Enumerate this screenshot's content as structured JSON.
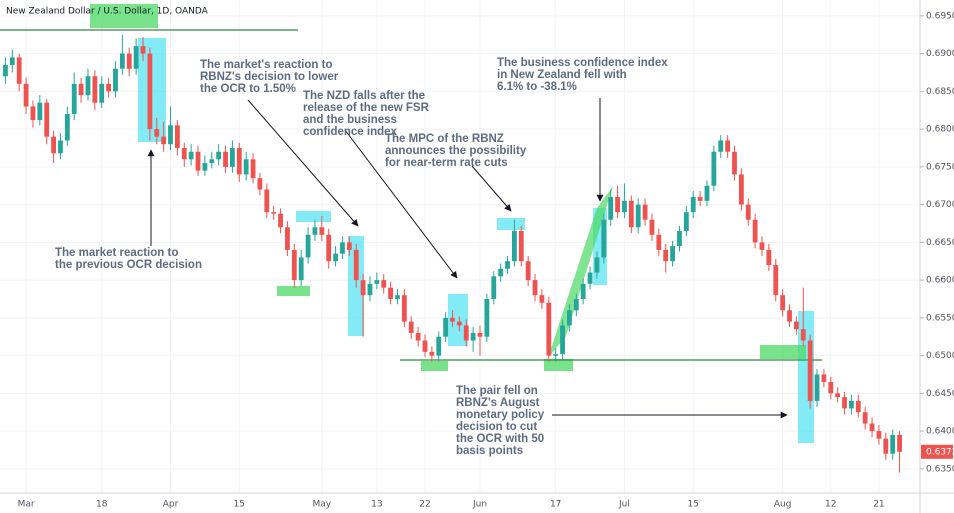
{
  "chart_data": {
    "type": "candlestick",
    "title": "New Zealand Dollar / U.S. Dollar, 1D, OANDA",
    "up_color": "#26a69a",
    "down_color": "#ef5350",
    "grid": true,
    "ylim": [
      0.6318,
      0.6971
    ],
    "yticks": [
      {
        "value": 0.635,
        "label": "0.63500"
      },
      {
        "value": 0.64,
        "label": "0.64000"
      },
      {
        "value": 0.645,
        "label": "0.64500"
      },
      {
        "value": 0.65,
        "label": "0.65000"
      },
      {
        "value": 0.655,
        "label": "0.65500"
      },
      {
        "value": 0.66,
        "label": "0.66000"
      },
      {
        "value": 0.665,
        "label": "0.66500"
      },
      {
        "value": 0.67,
        "label": "0.67000"
      },
      {
        "value": 0.675,
        "label": "0.67500"
      },
      {
        "value": 0.68,
        "label": "0.68000"
      },
      {
        "value": 0.685,
        "label": "0.68500"
      },
      {
        "value": 0.69,
        "label": "0.69000"
      },
      {
        "value": 0.695,
        "label": "0.69500"
      }
    ],
    "categories": [
      null,
      null,
      null,
      "Mar",
      null,
      null,
      null,
      null,
      null,
      null,
      null,
      null,
      null,
      null,
      "18",
      null,
      null,
      null,
      null,
      null,
      null,
      null,
      null,
      null,
      "Apr",
      null,
      null,
      null,
      null,
      null,
      null,
      null,
      null,
      null,
      "15",
      null,
      null,
      null,
      null,
      null,
      null,
      null,
      null,
      null,
      null,
      null,
      "May",
      null,
      null,
      null,
      null,
      null,
      null,
      null,
      "13",
      null,
      null,
      null,
      null,
      null,
      null,
      "22",
      null,
      null,
      null,
      null,
      null,
      null,
      null,
      "Jun",
      null,
      null,
      null,
      null,
      null,
      null,
      null,
      null,
      null,
      null,
      "17",
      null,
      null,
      null,
      null,
      null,
      null,
      null,
      null,
      null,
      "Jul",
      null,
      null,
      null,
      null,
      null,
      null,
      null,
      null,
      null,
      "15",
      null,
      null,
      null,
      null,
      null,
      null,
      null,
      null,
      null,
      null,
      null,
      null,
      "Aug",
      null,
      null,
      null,
      null,
      null,
      null,
      "12",
      null,
      null,
      null,
      null,
      null,
      null,
      "21",
      null,
      null,
      null
    ],
    "ohlc": [
      [
        0.687,
        0.6895,
        0.686,
        0.6885
      ],
      [
        0.6885,
        0.6905,
        0.6875,
        0.6895
      ],
      [
        0.6895,
        0.69,
        0.685,
        0.686
      ],
      [
        0.686,
        0.6868,
        0.682,
        0.683
      ],
      [
        0.683,
        0.6838,
        0.6802,
        0.6812
      ],
      [
        0.6812,
        0.6845,
        0.6805,
        0.6835
      ],
      [
        0.6835,
        0.684,
        0.678,
        0.679
      ],
      [
        0.679,
        0.6798,
        0.6755,
        0.6768
      ],
      [
        0.6768,
        0.6795,
        0.676,
        0.6785
      ],
      [
        0.6785,
        0.683,
        0.6778,
        0.682
      ],
      [
        0.682,
        0.6875,
        0.6812,
        0.686
      ],
      [
        0.686,
        0.6868,
        0.6835,
        0.6845
      ],
      [
        0.6845,
        0.688,
        0.6838,
        0.687
      ],
      [
        0.687,
        0.6878,
        0.6825,
        0.6835
      ],
      [
        0.6835,
        0.687,
        0.6828,
        0.686
      ],
      [
        0.686,
        0.6868,
        0.6842,
        0.685
      ],
      [
        0.685,
        0.689,
        0.6842,
        0.688
      ],
      [
        0.688,
        0.6925,
        0.6872,
        0.69
      ],
      [
        0.69,
        0.6908,
        0.687,
        0.688
      ],
      [
        0.688,
        0.692,
        0.6872,
        0.691
      ],
      [
        0.691,
        0.6922,
        0.689,
        0.69
      ],
      [
        0.69,
        0.6908,
        0.6785,
        0.68
      ],
      [
        0.68,
        0.6815,
        0.678,
        0.679
      ],
      [
        0.679,
        0.681,
        0.677,
        0.678
      ],
      [
        0.678,
        0.683,
        0.6772,
        0.6805
      ],
      [
        0.6805,
        0.6812,
        0.6765,
        0.6775
      ],
      [
        0.6775,
        0.6782,
        0.675,
        0.676
      ],
      [
        0.676,
        0.678,
        0.6752,
        0.677
      ],
      [
        0.677,
        0.6778,
        0.6738,
        0.6745
      ],
      [
        0.6745,
        0.6765,
        0.6738,
        0.6755
      ],
      [
        0.6755,
        0.677,
        0.6748,
        0.676
      ],
      [
        0.676,
        0.678,
        0.6752,
        0.677
      ],
      [
        0.677,
        0.6778,
        0.6742,
        0.675
      ],
      [
        0.675,
        0.6785,
        0.6742,
        0.6775
      ],
      [
        0.6775,
        0.6782,
        0.673,
        0.674
      ],
      [
        0.674,
        0.677,
        0.6732,
        0.676
      ],
      [
        0.676,
        0.6768,
        0.6728,
        0.6735
      ],
      [
        0.6735,
        0.6742,
        0.6712,
        0.672
      ],
      [
        0.672,
        0.6728,
        0.6682,
        0.669
      ],
      [
        0.669,
        0.6698,
        0.668,
        0.6688
      ],
      [
        0.6688,
        0.6695,
        0.6662,
        0.667
      ],
      [
        0.667,
        0.6678,
        0.6632,
        0.664
      ],
      [
        0.664,
        0.6648,
        0.659,
        0.66
      ],
      [
        0.66,
        0.664,
        0.6592,
        0.663
      ],
      [
        0.663,
        0.667,
        0.6622,
        0.666
      ],
      [
        0.666,
        0.668,
        0.6652,
        0.667
      ],
      [
        0.667,
        0.6685,
        0.6652,
        0.666
      ],
      [
        0.666,
        0.6668,
        0.6615,
        0.6625
      ],
      [
        0.6625,
        0.6645,
        0.6618,
        0.6635
      ],
      [
        0.6635,
        0.6658,
        0.6628,
        0.665
      ],
      [
        0.665,
        0.6658,
        0.6632,
        0.664
      ],
      [
        0.664,
        0.6648,
        0.659,
        0.66
      ],
      [
        0.66,
        0.6608,
        0.6525,
        0.658
      ],
      [
        0.658,
        0.6605,
        0.6572,
        0.6595
      ],
      [
        0.6595,
        0.661,
        0.6588,
        0.66
      ],
      [
        0.66,
        0.6608,
        0.6582,
        0.659
      ],
      [
        0.659,
        0.6598,
        0.6568,
        0.6575
      ],
      [
        0.6575,
        0.6588,
        0.6568,
        0.658
      ],
      [
        0.658,
        0.6588,
        0.6538,
        0.6545
      ],
      [
        0.6545,
        0.6552,
        0.6522,
        0.653
      ],
      [
        0.653,
        0.6538,
        0.6512,
        0.652
      ],
      [
        0.652,
        0.6528,
        0.6498,
        0.6505
      ],
      [
        0.6505,
        0.6512,
        0.6492,
        0.65
      ],
      [
        0.65,
        0.6532,
        0.6492,
        0.6525
      ],
      [
        0.6525,
        0.6558,
        0.6518,
        0.655
      ],
      [
        0.655,
        0.656,
        0.6538,
        0.6545
      ],
      [
        0.6545,
        0.6552,
        0.6532,
        0.654
      ],
      [
        0.654,
        0.6548,
        0.6512,
        0.652
      ],
      [
        0.652,
        0.6538,
        0.6505,
        0.653
      ],
      [
        0.653,
        0.654,
        0.65,
        0.6525
      ],
      [
        0.6525,
        0.6582,
        0.6518,
        0.6575
      ],
      [
        0.6575,
        0.6612,
        0.6568,
        0.6605
      ],
      [
        0.6605,
        0.6622,
        0.6598,
        0.6615
      ],
      [
        0.6615,
        0.6632,
        0.6608,
        0.6625
      ],
      [
        0.6625,
        0.668,
        0.6618,
        0.6665
      ],
      [
        0.6665,
        0.6672,
        0.6618,
        0.6625
      ],
      [
        0.6625,
        0.6632,
        0.6592,
        0.66
      ],
      [
        0.66,
        0.6608,
        0.6572,
        0.658
      ],
      [
        0.658,
        0.6588,
        0.6562,
        0.657
      ],
      [
        0.657,
        0.6578,
        0.6492,
        0.65
      ],
      [
        0.65,
        0.651,
        0.6492,
        0.6502
      ],
      [
        0.6502,
        0.6548,
        0.6495,
        0.654
      ],
      [
        0.654,
        0.6568,
        0.6532,
        0.656
      ],
      [
        0.656,
        0.6582,
        0.6552,
        0.6575
      ],
      [
        0.6575,
        0.6602,
        0.6568,
        0.6595
      ],
      [
        0.6595,
        0.6618,
        0.6588,
        0.661
      ],
      [
        0.661,
        0.6638,
        0.6602,
        0.663
      ],
      [
        0.663,
        0.6688,
        0.6622,
        0.668
      ],
      [
        0.668,
        0.672,
        0.6672,
        0.671
      ],
      [
        0.671,
        0.6725,
        0.6682,
        0.669
      ],
      [
        0.669,
        0.6728,
        0.6682,
        0.6705
      ],
      [
        0.6705,
        0.6712,
        0.6662,
        0.667
      ],
      [
        0.667,
        0.6708,
        0.6662,
        0.67
      ],
      [
        0.67,
        0.6708,
        0.6672,
        0.668
      ],
      [
        0.668,
        0.6688,
        0.6652,
        0.666
      ],
      [
        0.666,
        0.6668,
        0.6632,
        0.664
      ],
      [
        0.664,
        0.6648,
        0.661,
        0.6625
      ],
      [
        0.6625,
        0.6652,
        0.6618,
        0.6645
      ],
      [
        0.6645,
        0.6672,
        0.6638,
        0.6665
      ],
      [
        0.6665,
        0.6698,
        0.6658,
        0.669
      ],
      [
        0.669,
        0.6718,
        0.6682,
        0.671
      ],
      [
        0.671,
        0.6718,
        0.6698,
        0.6705
      ],
      [
        0.6705,
        0.6732,
        0.6698,
        0.6725
      ],
      [
        0.6725,
        0.6778,
        0.6718,
        0.677
      ],
      [
        0.677,
        0.6792,
        0.6762,
        0.6785
      ],
      [
        0.6785,
        0.6792,
        0.6762,
        0.677
      ],
      [
        0.677,
        0.6778,
        0.6732,
        0.674
      ],
      [
        0.674,
        0.6748,
        0.6692,
        0.67
      ],
      [
        0.67,
        0.6708,
        0.6672,
        0.668
      ],
      [
        0.668,
        0.6688,
        0.6642,
        0.665
      ],
      [
        0.665,
        0.6658,
        0.6632,
        0.664
      ],
      [
        0.664,
        0.6648,
        0.6612,
        0.662
      ],
      [
        0.662,
        0.6628,
        0.6572,
        0.658
      ],
      [
        0.658,
        0.6588,
        0.6552,
        0.656
      ],
      [
        0.656,
        0.6568,
        0.6538,
        0.6545
      ],
      [
        0.6545,
        0.6552,
        0.6528,
        0.6535
      ],
      [
        0.6535,
        0.659,
        0.6512,
        0.652
      ],
      [
        0.652,
        0.6528,
        0.643,
        0.644
      ],
      [
        0.644,
        0.6482,
        0.6432,
        0.6475
      ],
      [
        0.6475,
        0.6482,
        0.6458,
        0.6465
      ],
      [
        0.6465,
        0.6472,
        0.6442,
        0.645
      ],
      [
        0.645,
        0.6458,
        0.6438,
        0.6445
      ],
      [
        0.6445,
        0.6452,
        0.6422,
        0.643
      ],
      [
        0.643,
        0.6448,
        0.6422,
        0.644
      ],
      [
        0.644,
        0.6448,
        0.6418,
        0.6425
      ],
      [
        0.6425,
        0.6432,
        0.6402,
        0.641
      ],
      [
        0.641,
        0.6418,
        0.6392,
        0.64
      ],
      [
        0.64,
        0.6408,
        0.6382,
        0.639
      ],
      [
        0.639,
        0.6398,
        0.6362,
        0.637
      ],
      [
        0.637,
        0.6402,
        0.6362,
        0.6395
      ],
      [
        0.6395,
        0.64,
        0.6345,
        0.63726
      ]
    ],
    "annotations": [
      [
        "The market's reaction to",
        "RBNZ's decision to lower",
        " the OCR to 1.50%"
      ],
      [
        "The NZD falls after the",
        "release of the new FSR",
        "and the business",
        "confidence index"
      ],
      [
        "The MPC of the RBNZ",
        "announces the possibility",
        "for near-term rate cuts"
      ],
      [
        "The business confidence index",
        "in New Zealand fell with",
        "6.1% to -38.1%"
      ],
      [
        "The market reaction to",
        "the previous OCR decision"
      ],
      [
        "The pair fell on",
        "RBNZ's August",
        "monetary policy",
        "decision to cut",
        "the OCR with 50",
        "basis points"
      ]
    ]
  }
}
